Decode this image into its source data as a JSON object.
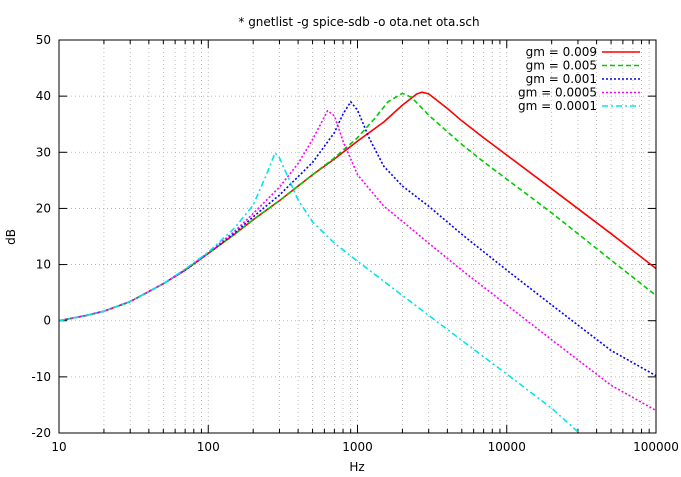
{
  "chart_data": {
    "type": "line",
    "title": "* gnetlist -g spice-sdb -o ota.net ota.sch",
    "xlabel": "Hz",
    "ylabel": "dB",
    "x_scale": "log",
    "xlim": [
      10,
      100000
    ],
    "ylim": [
      -20,
      50
    ],
    "x_ticks": [
      10,
      100,
      1000,
      10000,
      100000
    ],
    "x_tick_labels": [
      "10",
      "100",
      "1000",
      "10000",
      "100000"
    ],
    "y_ticks": [
      -20,
      -10,
      0,
      10,
      20,
      30,
      40,
      50
    ],
    "y_tick_labels": [
      "-20",
      "-10",
      "0",
      "10",
      "20",
      "30",
      "40",
      "50"
    ],
    "grid": true,
    "legend_position": "top-right",
    "series": [
      {
        "name": "gm = 0.009",
        "color": "#ff0000",
        "dash": "solid",
        "points": [
          [
            10,
            0
          ],
          [
            15,
            0.9
          ],
          [
            20,
            1.7
          ],
          [
            30,
            3.4
          ],
          [
            50,
            6.6
          ],
          [
            70,
            9
          ],
          [
            100,
            12
          ],
          [
            150,
            15.4
          ],
          [
            200,
            18
          ],
          [
            300,
            21.4
          ],
          [
            500,
            26
          ],
          [
            700,
            28.8
          ],
          [
            1000,
            32
          ],
          [
            1500,
            35.4
          ],
          [
            2000,
            38.4
          ],
          [
            2500,
            40.4
          ],
          [
            2700,
            40.7
          ],
          [
            3000,
            40.4
          ],
          [
            4000,
            37.8
          ],
          [
            5000,
            35.6
          ],
          [
            7000,
            32.6
          ],
          [
            10000,
            29.5
          ],
          [
            20000,
            23.5
          ],
          [
            50000,
            15.5
          ],
          [
            100000,
            9.3
          ]
        ]
      },
      {
        "name": "gm = 0.005",
        "color": "#00cc00",
        "dash": "5,3",
        "points": [
          [
            10,
            0
          ],
          [
            15,
            0.9
          ],
          [
            20,
            1.7
          ],
          [
            30,
            3.4
          ],
          [
            50,
            6.6
          ],
          [
            70,
            9
          ],
          [
            100,
            12
          ],
          [
            150,
            15.4
          ],
          [
            200,
            18
          ],
          [
            300,
            21.4
          ],
          [
            500,
            26
          ],
          [
            700,
            29
          ],
          [
            1000,
            32.6
          ],
          [
            1300,
            36
          ],
          [
            1600,
            39
          ],
          [
            2000,
            40.5
          ],
          [
            2300,
            39.8
          ],
          [
            3000,
            36.6
          ],
          [
            5000,
            31.4
          ],
          [
            7000,
            28.3
          ],
          [
            10000,
            25.2
          ],
          [
            20000,
            19.2
          ],
          [
            50000,
            10.8
          ],
          [
            100000,
            4.5
          ]
        ]
      },
      {
        "name": "gm = 0.001",
        "color": "#0000ff",
        "dash": "2,2",
        "points": [
          [
            10,
            0
          ],
          [
            15,
            0.9
          ],
          [
            20,
            1.7
          ],
          [
            30,
            3.4
          ],
          [
            50,
            6.6
          ],
          [
            70,
            9
          ],
          [
            100,
            12
          ],
          [
            150,
            15.6
          ],
          [
            200,
            18.5
          ],
          [
            300,
            22.4
          ],
          [
            500,
            28.2
          ],
          [
            700,
            33.5
          ],
          [
            800,
            36.8
          ],
          [
            900,
            39
          ],
          [
            1000,
            37.5
          ],
          [
            1200,
            32.5
          ],
          [
            1500,
            27.5
          ],
          [
            2000,
            24
          ],
          [
            3000,
            20.4
          ],
          [
            5000,
            15.4
          ],
          [
            10000,
            9
          ],
          [
            20000,
            2.8
          ],
          [
            50000,
            -5.3
          ],
          [
            100000,
            -9.8
          ]
        ]
      },
      {
        "name": "gm = 0.0005",
        "color": "#ff00ff",
        "dash": "2,2",
        "points": [
          [
            10,
            0
          ],
          [
            15,
            0.9
          ],
          [
            20,
            1.7
          ],
          [
            30,
            3.4
          ],
          [
            50,
            6.6
          ],
          [
            70,
            9.1
          ],
          [
            100,
            12.1
          ],
          [
            150,
            15.9
          ],
          [
            200,
            19.1
          ],
          [
            300,
            23.8
          ],
          [
            400,
            28
          ],
          [
            500,
            32.3
          ],
          [
            600,
            36.3
          ],
          [
            630,
            37.4
          ],
          [
            700,
            36.5
          ],
          [
            800,
            32
          ],
          [
            1000,
            26
          ],
          [
            1500,
            20.4
          ],
          [
            2000,
            17.7
          ],
          [
            3000,
            13.8
          ],
          [
            5000,
            9
          ],
          [
            10000,
            2.8
          ],
          [
            20000,
            -3.4
          ],
          [
            50000,
            -11.5
          ],
          [
            100000,
            -16
          ]
        ]
      },
      {
        "name": "gm = 0.0001",
        "color": "#00e5ee",
        "dash": "6,3,2,3",
        "points": [
          [
            10,
            0
          ],
          [
            15,
            0.9
          ],
          [
            20,
            1.7
          ],
          [
            30,
            3.4
          ],
          [
            50,
            6.6
          ],
          [
            70,
            9.2
          ],
          [
            100,
            12.2
          ],
          [
            150,
            16.5
          ],
          [
            200,
            20.6
          ],
          [
            250,
            26.5
          ],
          [
            280,
            29.9
          ],
          [
            300,
            29
          ],
          [
            350,
            25
          ],
          [
            400,
            21.5
          ],
          [
            500,
            17.6
          ],
          [
            700,
            13.8
          ],
          [
            1000,
            10.6
          ],
          [
            2000,
            4.5
          ],
          [
            5000,
            -3.5
          ],
          [
            10000,
            -9.5
          ],
          [
            20000,
            -15.6
          ],
          [
            30000,
            -19.8
          ]
        ]
      }
    ]
  }
}
